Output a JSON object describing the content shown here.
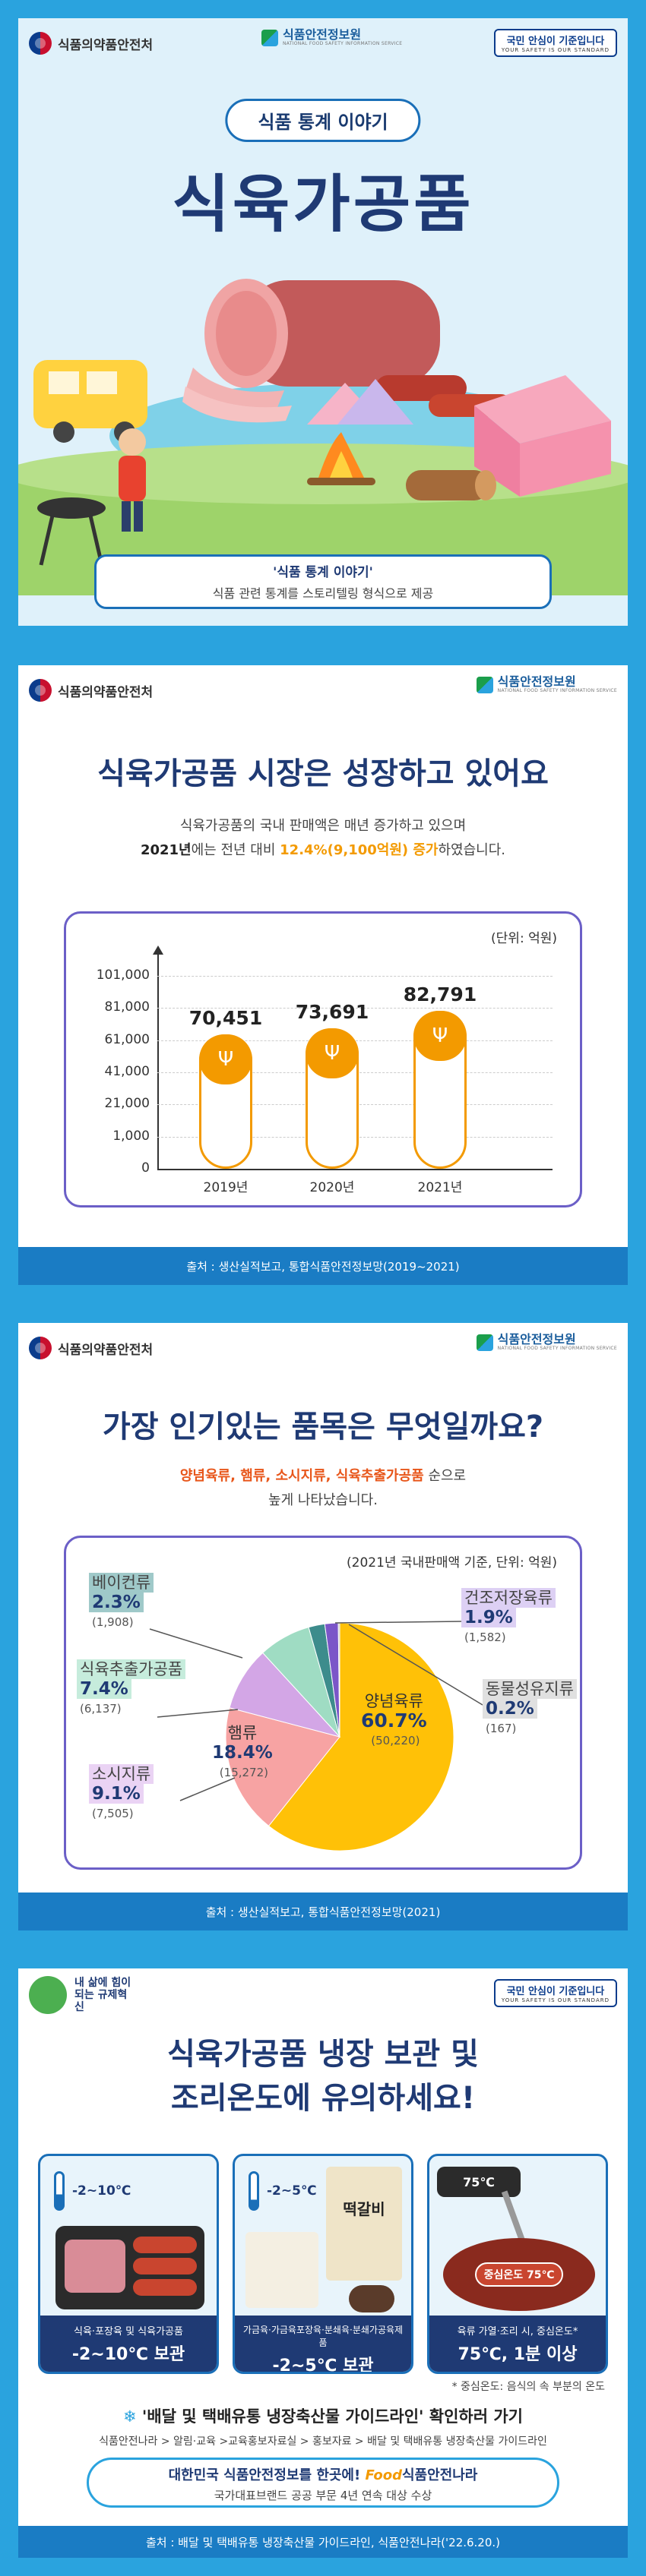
{
  "header_logos": {
    "mfds": "식품의약품안전처",
    "kfsis": "식품안전정보원",
    "kfsis_sub": "NATIONAL FOOD SAFETY INFORMATION SERVICE",
    "slogan_main": "국민 안심이 기준입니다",
    "slogan_sub": "YOUR SAFETY IS OUR STANDARD",
    "campaign": "내 삶에 힘이 되는 규제혁신"
  },
  "hero": {
    "pill": "식품 통계 이야기",
    "title": "식육가공품",
    "caption_title": "'식품 통계 이야기'",
    "caption_text": "식품 관련 통계를 스토리텔링 형식으로 제공"
  },
  "market": {
    "title": "식육가공품 시장은 성장하고 있어요",
    "line1": "식육가공품의 국내 판매액은 매년 증가하고 있으며",
    "line2_a": "2021년",
    "line2_b": "에는 전년 대비 ",
    "line2_c": "12.4%(9,100억원) 증가",
    "line2_d": "하였습니다.",
    "source": "출처 : 생산실적보고, 통합식품안전정보망(2019~2021)"
  },
  "chart_data": [
    {
      "type": "bar",
      "unit": "(단위: 억원)",
      "categories": [
        "2019년",
        "2020년",
        "2021년"
      ],
      "values": [
        70451,
        73691,
        82791
      ],
      "value_labels": [
        "70,451",
        "73,691",
        "82,791"
      ],
      "y_ticks": [
        "101,000",
        "81,000",
        "61,000",
        "41,000",
        "21,000",
        "1,000",
        "0"
      ],
      "ylim": [
        0,
        101000
      ]
    },
    {
      "type": "pie",
      "unit": "(2021년 국내판매액 기준, 단위: 억원)",
      "slices": [
        {
          "label": "양념육류",
          "pct": 60.7,
          "pct_label": "60.7%",
          "amount": "(50,220)",
          "color": "#ffc107"
        },
        {
          "label": "햄류",
          "pct": 18.4,
          "pct_label": "18.4%",
          "amount": "(15,272)",
          "color": "#f7a3a3"
        },
        {
          "label": "소시지류",
          "pct": 9.1,
          "pct_label": "9.1%",
          "amount": "(7,505)",
          "color": "#d3a6e6"
        },
        {
          "label": "식육추출가공품",
          "pct": 7.4,
          "pct_label": "7.4%",
          "amount": "(6,137)",
          "color": "#9fdcc3"
        },
        {
          "label": "베이컨류",
          "pct": 2.3,
          "pct_label": "2.3%",
          "amount": "(1,908)",
          "color": "#3d8c8c"
        },
        {
          "label": "건조저장육류",
          "pct": 1.9,
          "pct_label": "1.9%",
          "amount": "(1,582)",
          "color": "#7b56c8"
        },
        {
          "label": "동물성유지류",
          "pct": 0.2,
          "pct_label": "0.2%",
          "amount": "(167)",
          "color": "#bdbdbd"
        }
      ]
    }
  ],
  "popular": {
    "title": "가장 인기있는 품목은 무엇일까요?",
    "line1_items": "양념육류, 햄류, 소시지류, 식육추출가공품",
    "line1_rest": " 순으로",
    "line2": "높게 나타났습니다.",
    "source": "출처 : 생산실적보고, 통합식품안전정보망(2021)"
  },
  "storage": {
    "title1": "식육가공품 냉장 보관 및",
    "title2": "조리온도에 유의하세요!",
    "cards": [
      {
        "temp": "-2~10℃",
        "cap": "식육·포장육 및 식육가공품",
        "rule": "-2~10℃ 보관"
      },
      {
        "temp": "-2~5℃",
        "cap": "가금육·가금육포장육·분쇄육·분쇄가공육제품",
        "rule": "-2~5℃ 보관",
        "product": "떡갈비"
      },
      {
        "temp": "75℃",
        "cap": "육류 가열·조리 시, 중심온도*",
        "rule": "75℃, 1분 이상",
        "badge": "중심온도 75℃"
      }
    ],
    "footnote": "* 중심온도: 음식의 속 부분의 온도",
    "guide_title": "'배달 및 택배유통 냉장축산물 가이드라인' 확인하러 가기",
    "guide_path": "식품안전나라 > 알림·교육 >교육홍보자료실 > 홍보자료 > 배달 및 택배유통 냉장축산물 가이드라인",
    "award1_a": "대한민국 식품안전정보를 한곳에! ",
    "award1_brand": "Food",
    "award1_b": "식품안전나라",
    "award2": "국가대표브랜드 공공 부문 4년 연속 대상 수상",
    "source": "출처 : 배달 및 택배유통 냉장축산물 가이드라인, 식품안전나라('22.6.20.)"
  }
}
